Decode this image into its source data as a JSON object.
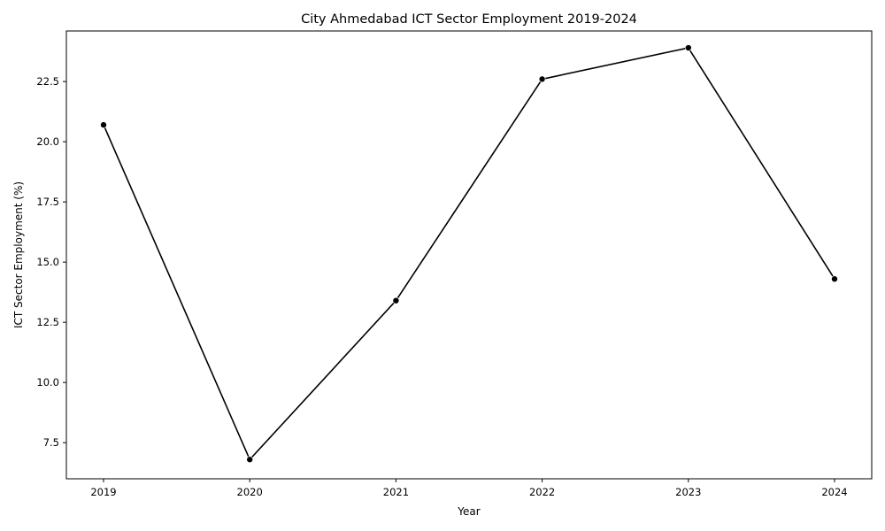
{
  "chart_data": {
    "type": "line",
    "title": "City Ahmedabad ICT Sector Employment 2019-2024",
    "xlabel": "Year",
    "ylabel": "ICT Sector Employment (%)",
    "x": [
      "2019",
      "2020",
      "2021",
      "2022",
      "2023",
      "2024"
    ],
    "series": [
      {
        "values": [
          20.7,
          6.8,
          13.4,
          22.6,
          23.9,
          14.3
        ],
        "color": "#000000",
        "marker": "circle"
      }
    ],
    "ylim": [
      6.0,
      24.6
    ],
    "yticks": [
      7.5,
      10.0,
      12.5,
      15.0,
      17.5,
      20.0,
      22.5
    ],
    "ytick_labels": [
      "7.5",
      "10.0",
      "12.5",
      "15.0",
      "17.5",
      "20.0",
      "22.5"
    ],
    "grid": false,
    "legend": "none"
  }
}
